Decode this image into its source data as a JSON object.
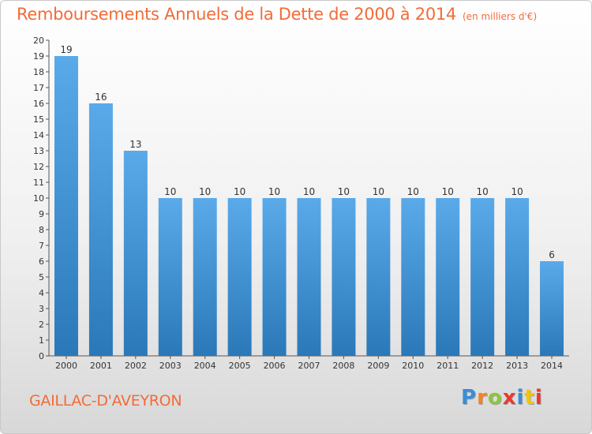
{
  "header": {
    "title": "Remboursements Annuels de la Dette de 2000 à 2014",
    "subtitle": "(en milliers d'€)"
  },
  "footer": {
    "city": "GAILLAC-D'AVEYRON",
    "brand": "Proxiti",
    "brand_colors": [
      "#3a8dd6",
      "#f58220",
      "#8cc63f",
      "#e8392e",
      "#3a8dd6",
      "#f5c400",
      "#e8392e"
    ]
  },
  "chart_data": {
    "type": "bar",
    "categories": [
      "2000",
      "2001",
      "2002",
      "2003",
      "2004",
      "2005",
      "2006",
      "2007",
      "2008",
      "2009",
      "2010",
      "2011",
      "2012",
      "2013",
      "2014"
    ],
    "values": [
      19,
      16,
      13,
      10,
      10,
      10,
      10,
      10,
      10,
      10,
      10,
      10,
      10,
      10,
      6
    ],
    "data_labels": [
      "19",
      "16",
      "13",
      "10",
      "10",
      "10",
      "10",
      "10",
      "10",
      "10",
      "10",
      "10",
      "10",
      "10",
      "6"
    ],
    "yticks": [
      0,
      1,
      2,
      3,
      4,
      5,
      6,
      7,
      8,
      9,
      10,
      11,
      12,
      13,
      14,
      15,
      16,
      17,
      18,
      19,
      20
    ],
    "ylim": [
      0,
      20
    ],
    "grid": false,
    "bar_color_top": "#5aaaea",
    "bar_color_bottom": "#2a78b8"
  }
}
